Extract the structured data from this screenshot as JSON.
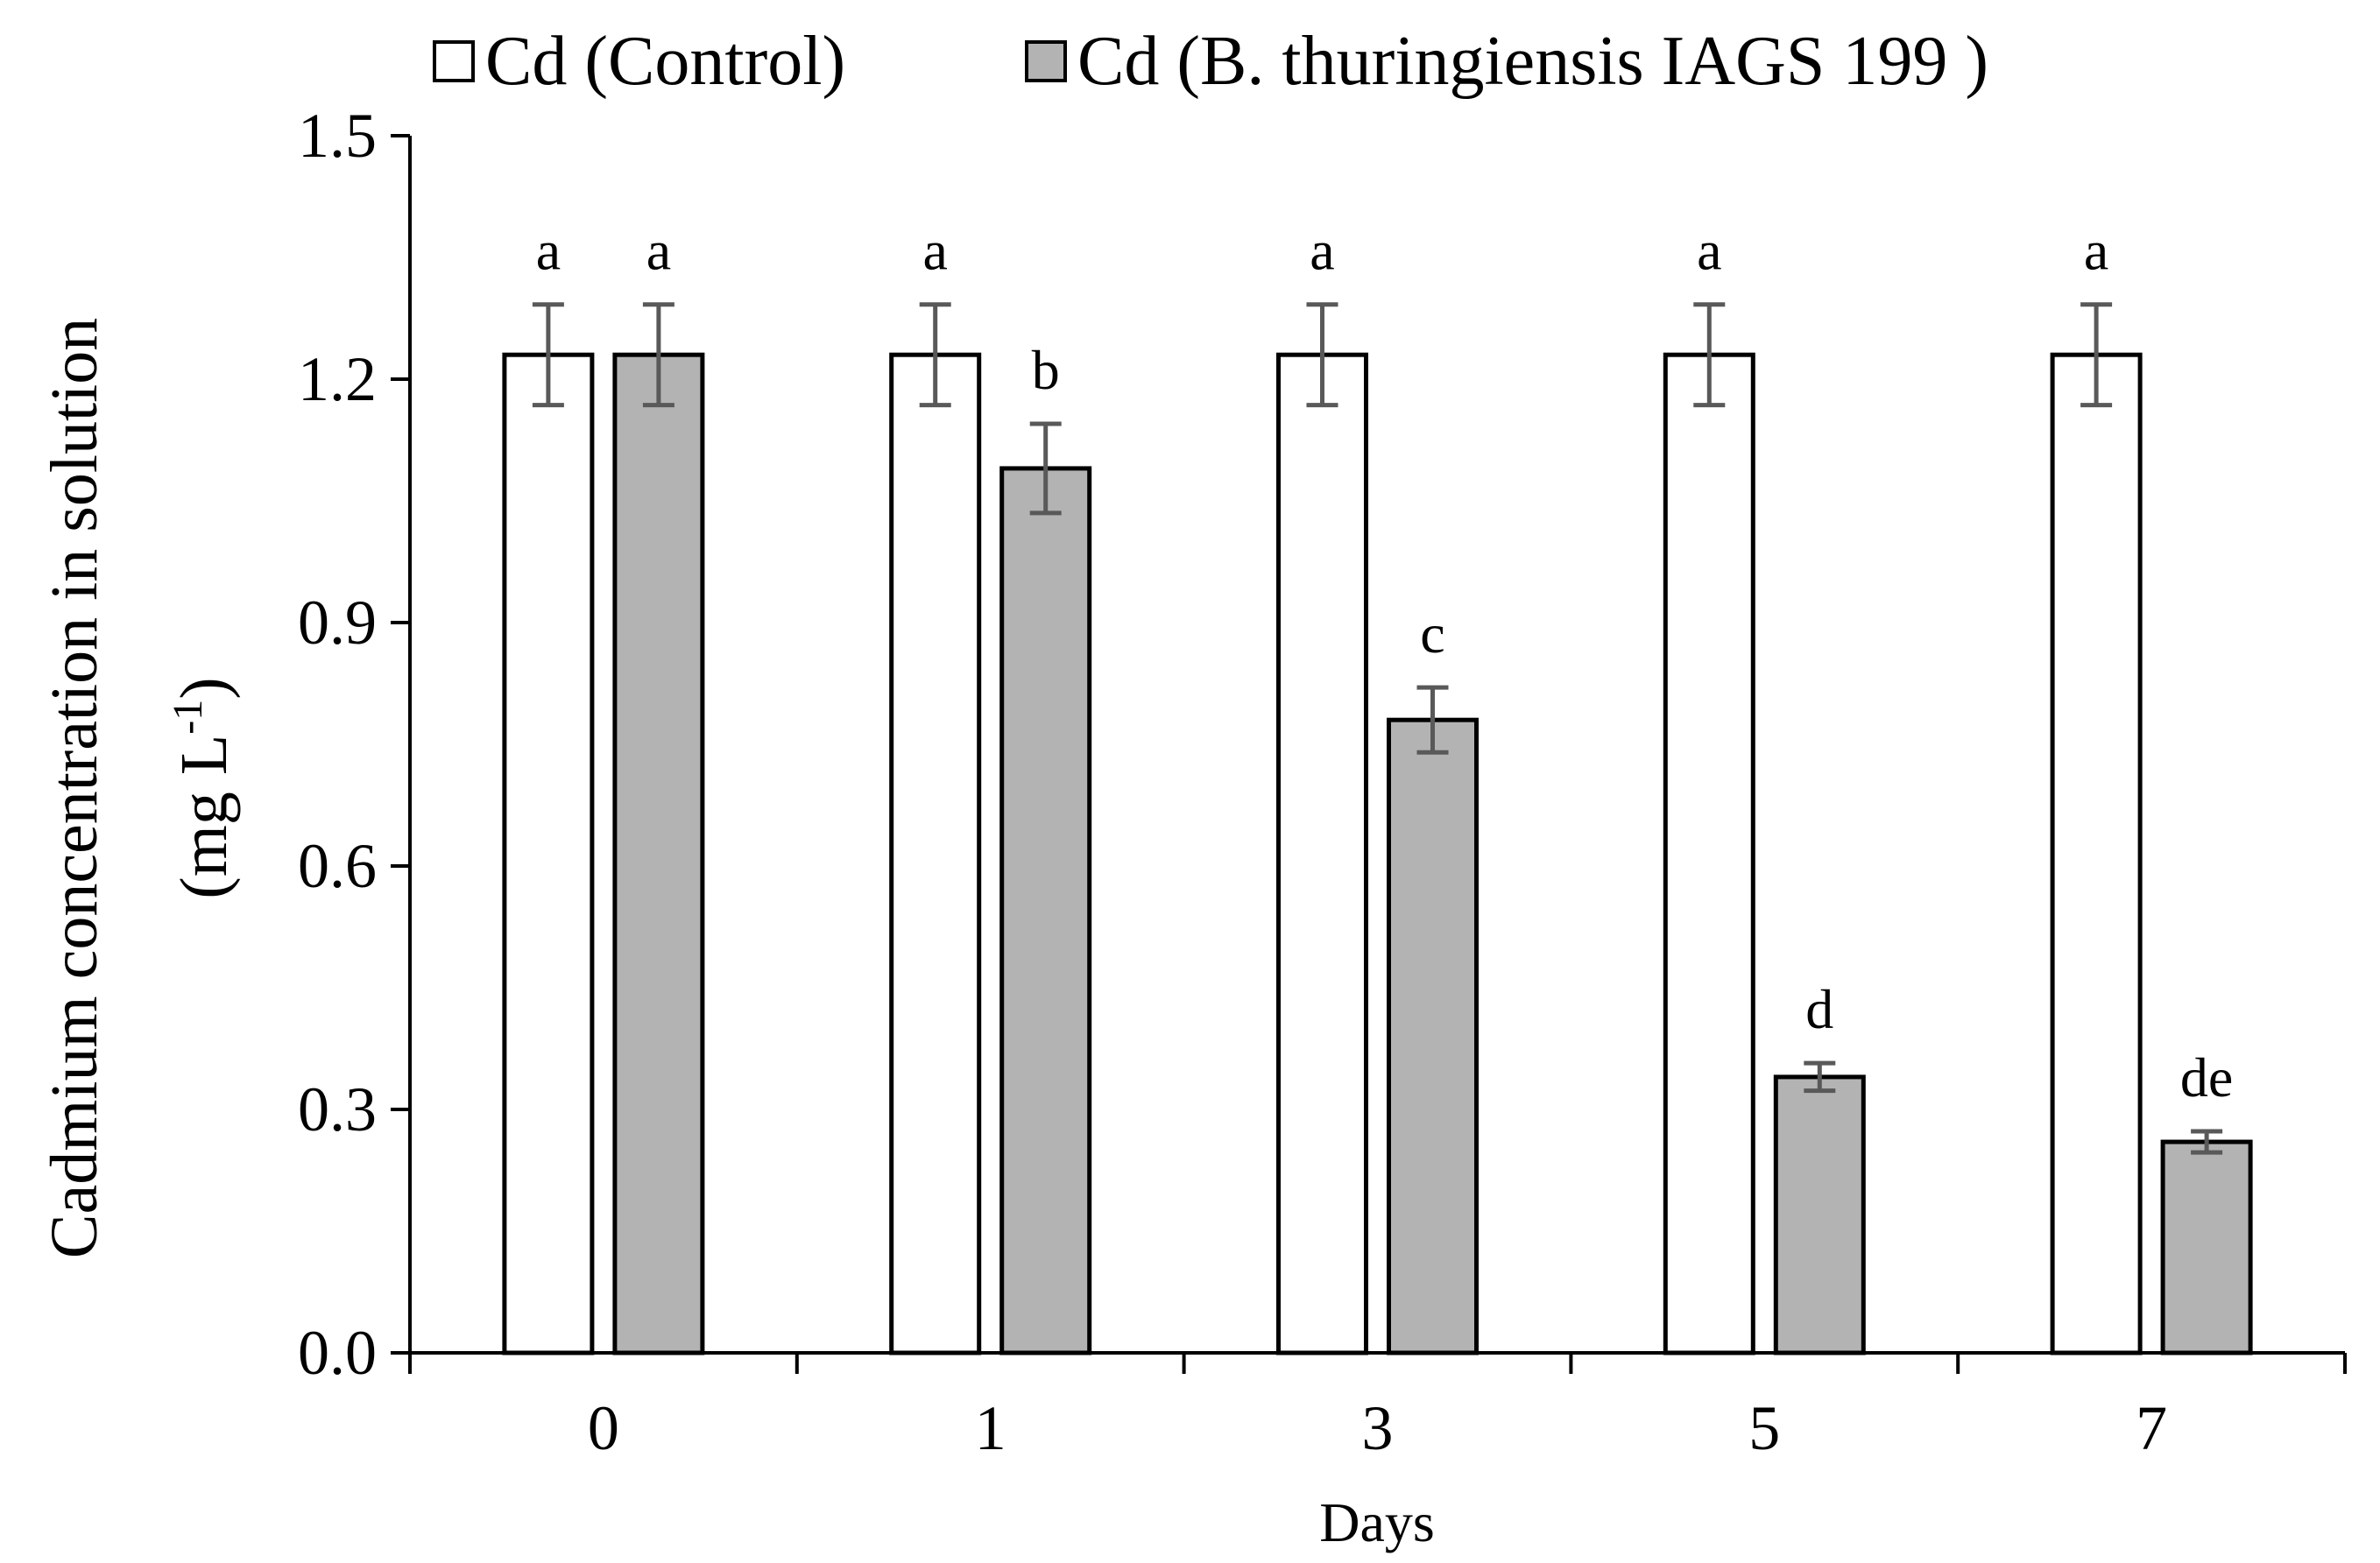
{
  "chart_data": {
    "type": "bar",
    "categories": [
      "0",
      "1",
      "3",
      "5",
      "7"
    ],
    "xlabel": "Days",
    "ylabel_line1": "Cadmium concentration in solution",
    "ylabel_line2_prefix": "(mg L",
    "ylabel_line2_sup": "-1",
    "ylabel_line2_suffix": ")",
    "ylim": [
      0,
      1.5
    ],
    "yticks": [
      "0.0",
      "0.3",
      "0.6",
      "0.9",
      "1.2",
      "1.5"
    ],
    "ytick_values": [
      0,
      0.3,
      0.6,
      0.9,
      1.2,
      1.5
    ],
    "legend_position": "top",
    "grid": false,
    "series": [
      {
        "name": "Cd (Control)",
        "color": "#ffffff",
        "values": [
          1.23,
          1.23,
          1.23,
          1.23,
          1.23
        ],
        "errors": [
          0.062,
          0.062,
          0.062,
          0.062,
          0.062
        ],
        "labels": [
          "a",
          "a",
          "a",
          "a",
          "a"
        ]
      },
      {
        "name": "Cd (B. thuringiensis IAGS 199 )",
        "color": "#b3b3b3",
        "values": [
          1.23,
          1.09,
          0.78,
          0.34,
          0.26
        ],
        "errors": [
          0.062,
          0.055,
          0.04,
          0.017,
          0.013
        ],
        "labels": [
          "a",
          "b",
          "c",
          "d",
          "de"
        ]
      }
    ],
    "error_bar_color": "#595959"
  }
}
